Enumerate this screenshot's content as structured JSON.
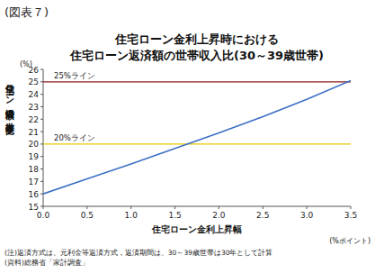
{
  "chart_data": {
    "type": "line",
    "figure_label": "(図表７)",
    "title": "住宅ローン金利上昇時における",
    "subtitle": "住宅ローン返済額の世帯収入比(30～39歳世帯)",
    "y_label": "住宅ローン返済額の世帯年収比",
    "y_unit": "(%)",
    "x_label": "住宅ローン金利上昇幅",
    "x_unit": "(%ポイント)",
    "x": [
      0,
      0.5,
      1.0,
      1.5,
      2.0,
      2.5,
      3.0,
      3.5
    ],
    "series": [
      {
        "color": "#3b6fc4",
        "values": [
          16.0,
          17.2,
          18.4,
          19.65,
          20.9,
          22.2,
          23.6,
          25.1
        ]
      }
    ],
    "reference_lines": [
      {
        "value": 25,
        "label": "25%ライン",
        "color": "#8b1a1a"
      },
      {
        "value": 20,
        "label": "20%ライン",
        "color": "#e8c800"
      }
    ],
    "xlim": [
      0,
      3.5
    ],
    "xticks": [
      {
        "value": 0,
        "label": "0.0"
      },
      {
        "value": 0.5,
        "label": "0.5"
      },
      {
        "value": 1,
        "label": "1.0"
      },
      {
        "value": 1.5,
        "label": "1.5"
      },
      {
        "value": 2,
        "label": "2.0"
      },
      {
        "value": 2.5,
        "label": "2.5"
      },
      {
        "value": 3,
        "label": "3.0"
      },
      {
        "value": 3.5,
        "label": "3.5"
      }
    ],
    "ylim": [
      15,
      26
    ],
    "yticks": [
      15,
      16,
      17,
      18,
      19,
      20,
      21,
      22,
      23,
      24,
      25,
      26
    ],
    "grid": false,
    "notes": [
      "(注)返済方式は、元利金等返済方式，返済期間は、30～39歳世帯は30年として計算",
      "(資料)総務省「家計調査」"
    ]
  }
}
